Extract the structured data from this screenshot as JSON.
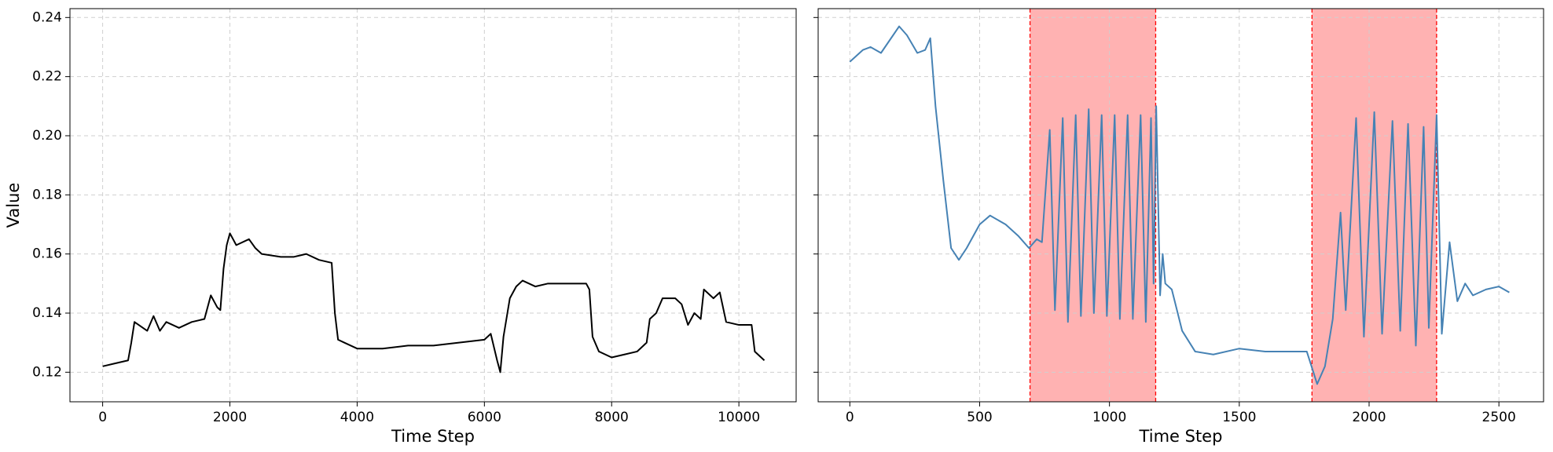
{
  "chart_data": [
    {
      "type": "line",
      "xlabel": "Time Step",
      "ylabel": "Value",
      "grid": true,
      "xlim": [
        -514,
        10900
      ],
      "ylim": [
        0.11,
        0.243
      ],
      "xticks": [
        0,
        2000,
        4000,
        6000,
        8000,
        10000
      ],
      "yticks": [
        {
          "value": 0.12,
          "label": "0.12"
        },
        {
          "value": 0.14,
          "label": "0.14"
        },
        {
          "value": 0.16,
          "label": "0.16"
        },
        {
          "value": 0.18,
          "label": "0.18"
        },
        {
          "value": 0.2,
          "label": "0.20"
        },
        {
          "value": 0.22,
          "label": "0.22"
        },
        {
          "value": 0.24,
          "label": "0.24"
        }
      ],
      "x": [
        0,
        200,
        400,
        450,
        500,
        700,
        800,
        900,
        1000,
        1200,
        1400,
        1600,
        1700,
        1800,
        1850,
        1900,
        1950,
        2000,
        2100,
        2300,
        2400,
        2500,
        2800,
        3000,
        3200,
        3400,
        3600,
        3650,
        3700,
        3800,
        4000,
        4400,
        4800,
        5200,
        5600,
        6000,
        6100,
        6200,
        6250,
        6300,
        6400,
        6500,
        6600,
        6800,
        7000,
        7400,
        7600,
        7650,
        7700,
        7800,
        8000,
        8200,
        8400,
        8550,
        8600,
        8700,
        8800,
        9000,
        9100,
        9200,
        9300,
        9400,
        9450,
        9600,
        9700,
        9800,
        10000,
        10200,
        10250,
        10400
      ],
      "series": [
        {
          "color": "#000000",
          "values": [
            0.122,
            0.123,
            0.124,
            0.13,
            0.137,
            0.134,
            0.139,
            0.134,
            0.137,
            0.135,
            0.137,
            0.138,
            0.146,
            0.142,
            0.141,
            0.155,
            0.163,
            0.167,
            0.163,
            0.165,
            0.162,
            0.16,
            0.159,
            0.159,
            0.16,
            0.158,
            0.157,
            0.14,
            0.131,
            0.13,
            0.128,
            0.128,
            0.129,
            0.129,
            0.13,
            0.131,
            0.133,
            0.124,
            0.12,
            0.132,
            0.145,
            0.149,
            0.151,
            0.149,
            0.15,
            0.15,
            0.15,
            0.148,
            0.132,
            0.127,
            0.125,
            0.126,
            0.127,
            0.13,
            0.138,
            0.14,
            0.145,
            0.145,
            0.143,
            0.136,
            0.14,
            0.138,
            0.148,
            0.145,
            0.147,
            0.137,
            0.136,
            0.136,
            0.127,
            0.124
          ]
        }
      ]
    },
    {
      "type": "line",
      "xlabel": "Time Step",
      "grid": true,
      "xlim": [
        -122,
        2672
      ],
      "ylim": [
        0.11,
        0.243
      ],
      "xticks": [
        0,
        500,
        1000,
        1500,
        2000,
        2500
      ],
      "spans": [
        [
          694,
          1178
        ],
        [
          1780,
          2260
        ]
      ],
      "span_color": "#ff0000",
      "x": [
        0,
        50,
        80,
        120,
        190,
        220,
        260,
        290,
        310,
        330,
        360,
        390,
        420,
        450,
        500,
        540,
        600,
        650,
        690,
        720,
        740,
        770,
        790,
        820,
        840,
        870,
        890,
        920,
        940,
        970,
        990,
        1020,
        1040,
        1070,
        1090,
        1120,
        1140,
        1160,
        1170,
        1180,
        1195,
        1205,
        1215,
        1240,
        1280,
        1330,
        1400,
        1500,
        1600,
        1700,
        1760,
        1800,
        1830,
        1860,
        1890,
        1910,
        1950,
        1980,
        2020,
        2050,
        2090,
        2120,
        2150,
        2180,
        2210,
        2230,
        2260,
        2280,
        2310,
        2340,
        2370,
        2400,
        2450,
        2500,
        2540
      ],
      "series": [
        {
          "color": "#4682b4",
          "values": [
            0.225,
            0.229,
            0.23,
            0.228,
            0.237,
            0.234,
            0.228,
            0.229,
            0.233,
            0.21,
            0.185,
            0.162,
            0.158,
            0.162,
            0.17,
            0.173,
            0.17,
            0.166,
            0.162,
            0.165,
            0.164,
            0.202,
            0.141,
            0.206,
            0.137,
            0.207,
            0.139,
            0.209,
            0.14,
            0.207,
            0.139,
            0.207,
            0.138,
            0.207,
            0.138,
            0.207,
            0.137,
            0.206,
            0.15,
            0.21,
            0.146,
            0.16,
            0.15,
            0.148,
            0.134,
            0.127,
            0.126,
            0.128,
            0.127,
            0.127,
            0.127,
            0.116,
            0.122,
            0.138,
            0.174,
            0.141,
            0.206,
            0.132,
            0.208,
            0.133,
            0.205,
            0.134,
            0.204,
            0.129,
            0.203,
            0.135,
            0.207,
            0.133,
            0.164,
            0.144,
            0.15,
            0.146,
            0.148,
            0.149,
            0.147
          ]
        }
      ]
    }
  ]
}
